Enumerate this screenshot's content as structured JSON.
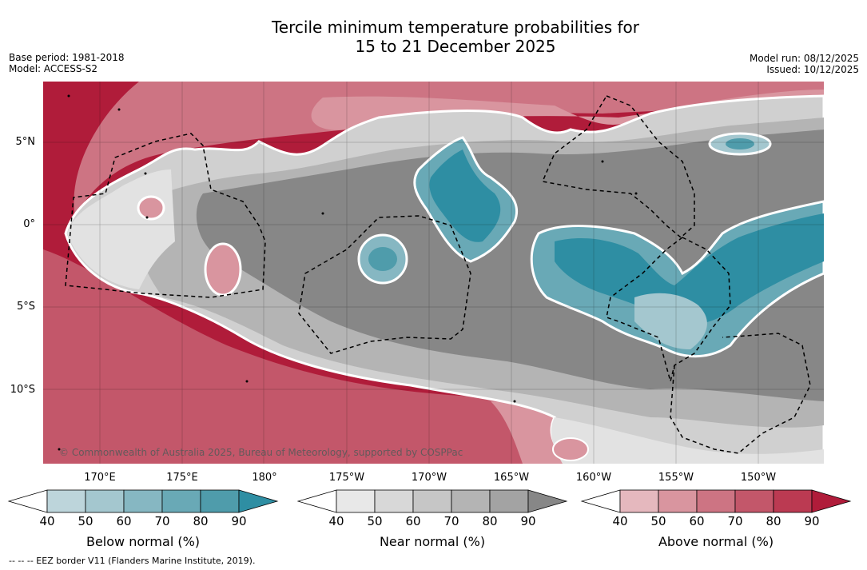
{
  "title": {
    "line1": "Tercile minimum temperature probabilities for",
    "line2": "15 to 21 December 2025"
  },
  "meta": {
    "base_period": "Base period: 1981-2018",
    "model": "Model: ACCESS-S2",
    "model_run": "Model run: 08/12/2025",
    "issued": "Issued: 10/12/2025"
  },
  "map": {
    "latitude_labels": [
      "5°N",
      "0°",
      "5°S",
      "10°S"
    ],
    "longitude_labels": [
      "170°E",
      "175°E",
      "180°",
      "175°W",
      "170°W",
      "165°W",
      "160°W",
      "155°W",
      "150°W"
    ],
    "copyright": "© Commonwealth of Australia 2025, Bureau of Meteorology, supported by COSPPac"
  },
  "colorbars": [
    {
      "label": "Below normal (%)",
      "ticks": [
        "40",
        "50",
        "60",
        "70",
        "80",
        "90"
      ],
      "colors": [
        "#ffffff",
        "#bdd5db",
        "#a4c7cf",
        "#86b7c2",
        "#69a9b6",
        "#4f9cab",
        "#2e8ea3"
      ]
    },
    {
      "label": "Near normal (%)",
      "ticks": [
        "40",
        "50",
        "60",
        "70",
        "80",
        "90"
      ],
      "colors": [
        "#ffffff",
        "#e8e8e8",
        "#d8d8d8",
        "#c6c6c6",
        "#b4b4b4",
        "#a3a3a3",
        "#878787"
      ]
    },
    {
      "label": "Above normal (%)",
      "ticks": [
        "40",
        "50",
        "60",
        "70",
        "80",
        "90"
      ],
      "colors": [
        "#ffffff",
        "#e5b8be",
        "#d9959f",
        "#cd7483",
        "#c3576a",
        "#bb3a52",
        "#b01c3a"
      ]
    }
  ],
  "footer": "--  --  -- EEZ border V11 (Flanders Marine Institute, 2019)."
}
